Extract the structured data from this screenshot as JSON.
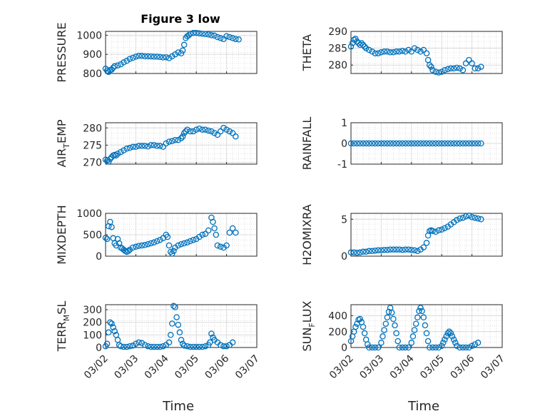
{
  "figure_title": "Figure 3 low",
  "x_axis_label": "Time",
  "marker_color": "#0072BD",
  "chart_data": [
    {
      "type": "scatter",
      "ylabel_parts": [
        "PRESSURE"
      ],
      "ylim": [
        800,
        1020
      ],
      "yticks": [
        800,
        900,
        1000
      ],
      "xlim": [
        0,
        5
      ],
      "xticks": [
        "03/02",
        "03/03",
        "03/04",
        "03/05",
        "03/06",
        "03/07"
      ],
      "grid": true,
      "x": [
        0.0,
        0.05,
        0.1,
        0.15,
        0.2,
        0.25,
        0.3,
        0.4,
        0.5,
        0.6,
        0.7,
        0.8,
        0.9,
        1.0,
        1.1,
        1.2,
        1.3,
        1.4,
        1.5,
        1.6,
        1.7,
        1.8,
        1.9,
        2.0,
        2.1,
        2.2,
        2.3,
        2.4,
        2.5,
        2.55,
        2.6,
        2.65,
        2.7,
        2.75,
        2.8,
        2.9,
        3.0,
        3.1,
        3.2,
        3.3,
        3.4,
        3.5,
        3.6,
        3.7,
        3.8,
        3.9,
        4.0,
        4.1,
        4.2,
        4.3,
        4.4
      ],
      "y": [
        825,
        815,
        808,
        818,
        820,
        830,
        838,
        842,
        848,
        858,
        866,
        876,
        882,
        888,
        892,
        892,
        890,
        890,
        889,
        888,
        888,
        886,
        884,
        885,
        880,
        890,
        900,
        910,
        905,
        920,
        950,
        985,
        995,
        1000,
        1008,
        1012,
        1012,
        1010,
        1008,
        1006,
        1004,
        1000,
        998,
        990,
        985,
        980,
        995,
        990,
        985,
        980,
        978
      ]
    },
    {
      "type": "scatter",
      "ylabel_parts": [
        "THETA"
      ],
      "ylim": [
        277.5,
        290
      ],
      "yticks": [
        280,
        285,
        290
      ],
      "xlim": [
        0,
        5
      ],
      "xticks": [
        "03/02",
        "03/03",
        "03/04",
        "03/05",
        "03/06",
        "03/07"
      ],
      "grid": true,
      "x": [
        0.0,
        0.05,
        0.1,
        0.15,
        0.2,
        0.25,
        0.3,
        0.35,
        0.4,
        0.45,
        0.5,
        0.6,
        0.7,
        0.8,
        0.9,
        1.0,
        1.1,
        1.2,
        1.3,
        1.4,
        1.5,
        1.6,
        1.7,
        1.8,
        1.9,
        2.0,
        2.1,
        2.2,
        2.3,
        2.4,
        2.5,
        2.55,
        2.6,
        2.65,
        2.7,
        2.8,
        2.9,
        3.0,
        3.1,
        3.2,
        3.3,
        3.4,
        3.5,
        3.6,
        3.7,
        3.8,
        3.9,
        4.0,
        4.1,
        4.2,
        4.3
      ],
      "y": [
        285.5,
        286.5,
        287.5,
        287.8,
        287.0,
        286.5,
        286.0,
        286.5,
        286.0,
        285.5,
        285.0,
        284.5,
        284.0,
        283.5,
        283.5,
        283.8,
        284.0,
        284.0,
        283.8,
        283.8,
        284.0,
        284.0,
        284.2,
        284.0,
        284.5,
        284.0,
        285.0,
        284.5,
        284.0,
        284.5,
        283.5,
        281.5,
        280.0,
        279.5,
        278.5,
        278.0,
        277.8,
        278.0,
        278.5,
        278.8,
        279.0,
        279.0,
        279.2,
        279.0,
        278.5,
        280.5,
        281.5,
        280.5,
        279.0,
        279.0,
        279.5
      ]
    },
    {
      "type": "scatter",
      "ylabel_parts": [
        "AIR",
        "T",
        "EMP"
      ],
      "ylim": [
        269.5,
        281.5
      ],
      "yticks": [
        270,
        275,
        280
      ],
      "xlim": [
        0,
        5
      ],
      "xticks": [
        "03/02",
        "03/03",
        "03/04",
        "03/05",
        "03/06",
        "03/07"
      ],
      "grid": true,
      "x": [
        0.0,
        0.05,
        0.1,
        0.15,
        0.2,
        0.25,
        0.3,
        0.35,
        0.4,
        0.5,
        0.6,
        0.7,
        0.8,
        0.9,
        1.0,
        1.1,
        1.2,
        1.3,
        1.4,
        1.5,
        1.6,
        1.7,
        1.8,
        1.9,
        2.0,
        2.1,
        2.2,
        2.3,
        2.4,
        2.5,
        2.55,
        2.6,
        2.65,
        2.7,
        2.8,
        2.9,
        3.0,
        3.1,
        3.2,
        3.3,
        3.4,
        3.5,
        3.6,
        3.7,
        3.8,
        3.9,
        4.0,
        4.1,
        4.2,
        4.3
      ],
      "y": [
        270.8,
        270.5,
        270.2,
        271.0,
        271.5,
        272.0,
        272.2,
        272.0,
        272.5,
        273.0,
        273.5,
        274.0,
        274.2,
        274.5,
        274.5,
        274.8,
        274.8,
        274.8,
        274.6,
        275.0,
        275.0,
        274.8,
        274.8,
        274.5,
        275.5,
        276.0,
        276.2,
        276.5,
        276.5,
        277.0,
        277.5,
        278.5,
        279.0,
        279.5,
        279.0,
        279.0,
        279.5,
        279.8,
        279.5,
        279.5,
        279.2,
        279.0,
        278.5,
        278.0,
        279.0,
        280.0,
        279.5,
        279.0,
        278.5,
        277.5
      ]
    },
    {
      "type": "scatter",
      "ylabel_parts": [
        "RAINFALL"
      ],
      "ylim": [
        -1,
        1
      ],
      "yticks": [
        -1,
        0,
        1
      ],
      "xlim": [
        0,
        5
      ],
      "xticks": [
        "03/02",
        "03/03",
        "03/04",
        "03/05",
        "03/06",
        "03/07"
      ],
      "grid": true,
      "x": [
        0.0,
        0.1,
        0.2,
        0.3,
        0.4,
        0.5,
        0.6,
        0.7,
        0.8,
        0.9,
        1.0,
        1.1,
        1.2,
        1.3,
        1.4,
        1.5,
        1.6,
        1.7,
        1.8,
        1.9,
        2.0,
        2.1,
        2.2,
        2.3,
        2.4,
        2.5,
        2.6,
        2.7,
        2.8,
        2.9,
        3.0,
        3.1,
        3.2,
        3.3,
        3.4,
        3.5,
        3.6,
        3.7,
        3.8,
        3.9,
        4.0,
        4.1,
        4.2,
        4.3
      ],
      "y": [
        0,
        0,
        0,
        0,
        0,
        0,
        0,
        0,
        0,
        0,
        0,
        0,
        0,
        0,
        0,
        0,
        0,
        0,
        0,
        0,
        0,
        0,
        0,
        0,
        0,
        0,
        0,
        0,
        0,
        0,
        0,
        0,
        0,
        0,
        0,
        0,
        0,
        0,
        0,
        0,
        0,
        0,
        0,
        0
      ]
    },
    {
      "type": "scatter",
      "ylabel_parts": [
        "MIXDEPTH"
      ],
      "ylim": [
        0,
        1000
      ],
      "yticks": [
        0,
        500,
        1000
      ],
      "xlim": [
        0,
        5
      ],
      "xticks": [
        "03/02",
        "03/03",
        "03/04",
        "03/05",
        "03/06",
        "03/07"
      ],
      "grid": true,
      "x": [
        0.0,
        0.05,
        0.1,
        0.15,
        0.2,
        0.25,
        0.3,
        0.35,
        0.4,
        0.45,
        0.5,
        0.55,
        0.6,
        0.65,
        0.7,
        0.75,
        0.8,
        0.9,
        1.0,
        1.1,
        1.2,
        1.3,
        1.4,
        1.5,
        1.6,
        1.7,
        1.8,
        1.9,
        2.0,
        2.05,
        2.1,
        2.15,
        2.2,
        2.25,
        2.3,
        2.4,
        2.5,
        2.6,
        2.7,
        2.8,
        2.9,
        3.0,
        3.1,
        3.2,
        3.3,
        3.4,
        3.5,
        3.55,
        3.6,
        3.65,
        3.7,
        3.8,
        3.9,
        4.0,
        4.1,
        4.2,
        4.3
      ],
      "y": [
        430,
        400,
        700,
        800,
        680,
        420,
        300,
        250,
        400,
        300,
        200,
        180,
        150,
        120,
        100,
        120,
        150,
        200,
        220,
        240,
        250,
        260,
        280,
        300,
        320,
        350,
        380,
        420,
        500,
        450,
        250,
        100,
        60,
        120,
        200,
        250,
        280,
        300,
        320,
        350,
        380,
        400,
        450,
        500,
        520,
        600,
        900,
        800,
        650,
        500,
        250,
        220,
        200,
        250,
        550,
        650,
        550
      ]
    },
    {
      "type": "scatter",
      "ylabel_parts": [
        "H2OMIXRA"
      ],
      "ylim": [
        0,
        5.8
      ],
      "yticks": [
        0,
        5
      ],
      "xlim": [
        0,
        5
      ],
      "xticks": [
        "03/02",
        "03/03",
        "03/04",
        "03/05",
        "03/06",
        "03/07"
      ],
      "grid": true,
      "x": [
        0.0,
        0.1,
        0.2,
        0.3,
        0.4,
        0.5,
        0.6,
        0.7,
        0.8,
        0.9,
        1.0,
        1.1,
        1.2,
        1.3,
        1.4,
        1.5,
        1.6,
        1.7,
        1.8,
        1.9,
        2.0,
        2.1,
        2.2,
        2.3,
        2.4,
        2.5,
        2.55,
        2.6,
        2.65,
        2.7,
        2.8,
        2.9,
        3.0,
        3.1,
        3.2,
        3.3,
        3.4,
        3.5,
        3.6,
        3.7,
        3.8,
        3.9,
        4.0,
        4.1,
        4.2,
        4.3
      ],
      "y": [
        0.5,
        0.5,
        0.45,
        0.5,
        0.6,
        0.6,
        0.7,
        0.7,
        0.75,
        0.8,
        0.8,
        0.85,
        0.85,
        0.9,
        0.9,
        0.9,
        0.9,
        0.85,
        0.9,
        0.9,
        0.85,
        0.8,
        0.7,
        0.9,
        1.2,
        1.8,
        2.8,
        3.4,
        3.5,
        3.4,
        3.3,
        3.5,
        3.6,
        3.8,
        4.0,
        4.3,
        4.6,
        4.9,
        5.1,
        5.2,
        5.4,
        5.5,
        5.3,
        5.2,
        5.1,
        5.0
      ]
    },
    {
      "type": "scatter",
      "ylabel_parts": [
        "TERR",
        "M",
        "SL"
      ],
      "ylim": [
        0,
        340
      ],
      "yticks": [
        0,
        100,
        200,
        300
      ],
      "xlim": [
        0,
        5
      ],
      "xticks": [
        "03/02",
        "03/03",
        "03/04",
        "03/05",
        "03/06",
        "03/07"
      ],
      "grid": true,
      "x": [
        0.0,
        0.05,
        0.1,
        0.15,
        0.2,
        0.25,
        0.3,
        0.35,
        0.4,
        0.45,
        0.5,
        0.6,
        0.7,
        0.8,
        0.9,
        1.0,
        1.1,
        1.2,
        1.3,
        1.4,
        1.5,
        1.6,
        1.7,
        1.8,
        1.9,
        2.0,
        2.1,
        2.15,
        2.2,
        2.25,
        2.3,
        2.35,
        2.4,
        2.45,
        2.5,
        2.55,
        2.6,
        2.7,
        2.8,
        2.9,
        3.0,
        3.1,
        3.2,
        3.3,
        3.4,
        3.45,
        3.5,
        3.55,
        3.6,
        3.7,
        3.8,
        3.9,
        4.0,
        4.1,
        4.2
      ],
      "y": [
        10,
        30,
        120,
        200,
        190,
        160,
        130,
        100,
        60,
        20,
        10,
        5,
        5,
        10,
        15,
        30,
        40,
        35,
        20,
        10,
        5,
        5,
        5,
        5,
        10,
        20,
        40,
        100,
        190,
        330,
        320,
        240,
        180,
        120,
        60,
        30,
        15,
        10,
        5,
        5,
        5,
        5,
        5,
        10,
        20,
        40,
        110,
        80,
        60,
        40,
        20,
        10,
        10,
        20,
        40
      ]
    },
    {
      "type": "scatter",
      "ylabel_parts": [
        "SUN",
        "F",
        "LUX"
      ],
      "ylim": [
        0,
        540
      ],
      "yticks": [
        0,
        200,
        400
      ],
      "xlim": [
        0,
        5
      ],
      "xticks": [
        "03/02",
        "03/03",
        "03/04",
        "03/05",
        "03/06",
        "03/07"
      ],
      "grid": true,
      "x": [
        0.0,
        0.05,
        0.1,
        0.15,
        0.2,
        0.25,
        0.3,
        0.35,
        0.4,
        0.45,
        0.5,
        0.55,
        0.6,
        0.7,
        0.8,
        0.9,
        1.0,
        1.05,
        1.1,
        1.15,
        1.2,
        1.25,
        1.3,
        1.35,
        1.4,
        1.45,
        1.5,
        1.55,
        1.6,
        1.7,
        1.8,
        1.9,
        2.0,
        2.05,
        2.1,
        2.15,
        2.2,
        2.25,
        2.3,
        2.35,
        2.4,
        2.45,
        2.5,
        2.55,
        2.6,
        2.7,
        2.8,
        2.9,
        3.0,
        3.05,
        3.1,
        3.15,
        3.2,
        3.25,
        3.3,
        3.35,
        3.4,
        3.45,
        3.5,
        3.6,
        3.7,
        3.8,
        3.9,
        4.0,
        4.1,
        4.2
      ],
      "y": [
        80,
        140,
        200,
        260,
        300,
        350,
        360,
        320,
        260,
        180,
        100,
        40,
        0,
        0,
        0,
        0,
        60,
        140,
        220,
        300,
        380,
        450,
        500,
        440,
        360,
        280,
        180,
        80,
        0,
        0,
        0,
        0,
        60,
        140,
        220,
        300,
        380,
        460,
        500,
        460,
        380,
        280,
        180,
        80,
        0,
        0,
        0,
        0,
        20,
        60,
        100,
        140,
        180,
        200,
        180,
        140,
        100,
        60,
        20,
        0,
        0,
        0,
        0,
        20,
        40,
        60
      ]
    }
  ]
}
